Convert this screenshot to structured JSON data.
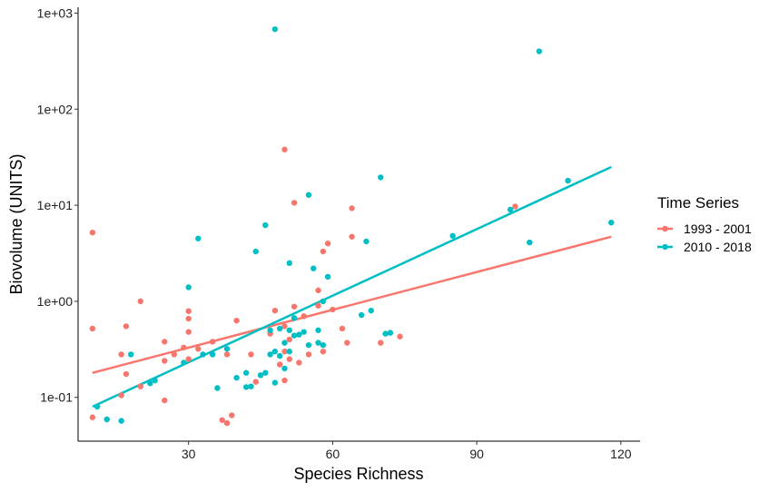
{
  "chart_data": {
    "type": "scatter",
    "xlabel": "Species Richness",
    "ylabel": "Biovolume (UNITS)",
    "x_ticks": [
      30,
      60,
      90,
      120
    ],
    "y_ticks": [
      0.1,
      1,
      10,
      100,
      1000
    ],
    "y_tick_labels": [
      "1e-01",
      "1e+00",
      "1e+01",
      "1e+02",
      "1e+03"
    ],
    "y_scale": "log10",
    "xlim": [
      7,
      124
    ],
    "ylim": [
      0.035,
      1150
    ],
    "grid": false,
    "legend": {
      "title": "Time Series",
      "position": "right"
    },
    "series": [
      {
        "name": "1993 - 2001",
        "color": "#F8766D",
        "trend": {
          "x": [
            10,
            118
          ],
          "y": [
            0.18,
            4.7
          ]
        },
        "points": [
          [
            10,
            5.2
          ],
          [
            10,
            0.52
          ],
          [
            10,
            0.062
          ],
          [
            16,
            0.28
          ],
          [
            16,
            0.105
          ],
          [
            17,
            0.55
          ],
          [
            17,
            0.175
          ],
          [
            20,
            1.0
          ],
          [
            20,
            0.13
          ],
          [
            25,
            0.38
          ],
          [
            25,
            0.24
          ],
          [
            25,
            0.093
          ],
          [
            27,
            0.28
          ],
          [
            29,
            0.33
          ],
          [
            30,
            0.79
          ],
          [
            30,
            0.66
          ],
          [
            30,
            0.48
          ],
          [
            30,
            0.25
          ],
          [
            32,
            0.32
          ],
          [
            35,
            0.38
          ],
          [
            37,
            0.058
          ],
          [
            38,
            0.28
          ],
          [
            38,
            0.054
          ],
          [
            39,
            0.065
          ],
          [
            40,
            0.63
          ],
          [
            43,
            0.28
          ],
          [
            44,
            0.145
          ],
          [
            45,
            0.17
          ],
          [
            47,
            0.46
          ],
          [
            48,
            0.8
          ],
          [
            49,
            0.22
          ],
          [
            50,
            38
          ],
          [
            50,
            0.55
          ],
          [
            50,
            0.3
          ],
          [
            50,
            0.15
          ],
          [
            51,
            0.4
          ],
          [
            51,
            0.25
          ],
          [
            52,
            10.6
          ],
          [
            52,
            0.88
          ],
          [
            53,
            0.23
          ],
          [
            54,
            0.7
          ],
          [
            55,
            0.28
          ],
          [
            57,
            1.3
          ],
          [
            57,
            0.9
          ],
          [
            58,
            3.3
          ],
          [
            58,
            0.3
          ],
          [
            59,
            4.0
          ],
          [
            60,
            0.82
          ],
          [
            62,
            0.52
          ],
          [
            63,
            0.37
          ],
          [
            64,
            9.3
          ],
          [
            64,
            4.7
          ],
          [
            70,
            0.37
          ],
          [
            74,
            0.43
          ],
          [
            98,
            9.7
          ]
        ]
      },
      {
        "name": "2010 - 2018",
        "color": "#00BFC4",
        "trend": {
          "x": [
            10,
            118
          ],
          "y": [
            0.08,
            25
          ]
        },
        "points": [
          [
            11,
            0.08
          ],
          [
            13,
            0.059
          ],
          [
            16,
            0.057
          ],
          [
            18,
            0.28
          ],
          [
            22,
            0.14
          ],
          [
            23,
            0.15
          ],
          [
            29,
            0.23
          ],
          [
            30,
            1.4
          ],
          [
            32,
            4.5
          ],
          [
            33,
            0.28
          ],
          [
            35,
            0.28
          ],
          [
            36,
            0.125
          ],
          [
            38,
            0.32
          ],
          [
            40,
            0.16
          ],
          [
            42,
            0.18
          ],
          [
            42,
            0.128
          ],
          [
            43,
            0.13
          ],
          [
            44,
            3.3
          ],
          [
            45,
            0.17
          ],
          [
            46,
            6.2
          ],
          [
            46,
            0.18
          ],
          [
            47,
            0.5
          ],
          [
            47,
            0.28
          ],
          [
            48,
            680
          ],
          [
            48,
            0.3
          ],
          [
            48,
            0.142
          ],
          [
            49,
            0.52
          ],
          [
            49,
            0.27
          ],
          [
            50,
            0.37
          ],
          [
            50,
            0.2
          ],
          [
            51,
            2.5
          ],
          [
            51,
            0.5
          ],
          [
            51,
            0.3
          ],
          [
            52,
            0.67
          ],
          [
            52,
            0.44
          ],
          [
            53,
            0.45
          ],
          [
            54,
            0.48
          ],
          [
            55,
            12.8
          ],
          [
            55,
            0.35
          ],
          [
            56,
            2.2
          ],
          [
            57,
            0.5
          ],
          [
            57,
            0.37
          ],
          [
            58,
            1.0
          ],
          [
            58,
            0.35
          ],
          [
            59,
            1.8
          ],
          [
            66,
            0.72
          ],
          [
            67,
            4.2
          ],
          [
            68,
            0.8
          ],
          [
            71,
            0.46
          ],
          [
            72,
            0.47
          ],
          [
            70,
            19.5
          ],
          [
            85,
            4.8
          ],
          [
            97,
            9.0
          ],
          [
            101,
            4.1
          ],
          [
            103,
            400
          ],
          [
            109,
            18
          ],
          [
            118,
            6.6
          ]
        ]
      }
    ]
  }
}
